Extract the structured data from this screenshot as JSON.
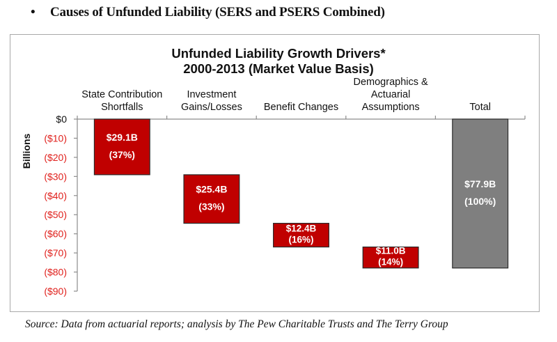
{
  "page": {
    "heading": "Causes of Unfunded Liability (SERS and PSERS Combined)",
    "bullet": "•",
    "source": "Source: Data from actuarial reports; analysis by The Pew Charitable Trusts and The Terry Group"
  },
  "colors": {
    "driver_bar": "#c00000",
    "total_bar": "#7f7f7f",
    "negative_tick": "#e0201c",
    "axis": "#8c8c8c"
  },
  "chart_data": {
    "type": "bar",
    "subtype": "waterfall",
    "title_lines": [
      "Unfunded Liability Growth Drivers*",
      "2000-2013 (Market Value Basis)"
    ],
    "xlabel": "",
    "ylabel": "Billions",
    "ylim": [
      -90,
      0
    ],
    "yticks": [
      0,
      -10,
      -20,
      -30,
      -40,
      -50,
      -60,
      -70,
      -80,
      -90
    ],
    "ytick_labels": [
      "$0",
      "($10)",
      "($20)",
      "($30)",
      "($40)",
      "($50)",
      "($60)",
      "($70)",
      "($80)",
      "($90)"
    ],
    "categories": [
      [
        "State Contribution",
        "Shortfalls"
      ],
      [
        "Investment",
        "Gains/Losses"
      ],
      [
        "Benefit Changes"
      ],
      [
        "Demographics &",
        "Actuarial",
        "Assumptions"
      ],
      [
        "Total"
      ]
    ],
    "bars": [
      {
        "start": 0,
        "end": -29.1,
        "value": 29.1,
        "label": "$29.1B",
        "pct_label": "(37%)",
        "kind": "driver"
      },
      {
        "start": -29.1,
        "end": -54.5,
        "value": 25.4,
        "label": "$25.4B",
        "pct_label": "(33%)",
        "kind": "driver"
      },
      {
        "start": -54.5,
        "end": -66.9,
        "value": 12.4,
        "label": "$12.4B",
        "pct_label": "(16%)",
        "kind": "driver"
      },
      {
        "start": -66.9,
        "end": -77.9,
        "value": 11.0,
        "label": "$11.0B",
        "pct_label": "(14%)",
        "kind": "driver"
      },
      {
        "start": 0,
        "end": -77.9,
        "value": 77.9,
        "label": "$77.9B",
        "pct_label": "(100%)",
        "kind": "total"
      }
    ],
    "grid": false,
    "legend": "none"
  }
}
